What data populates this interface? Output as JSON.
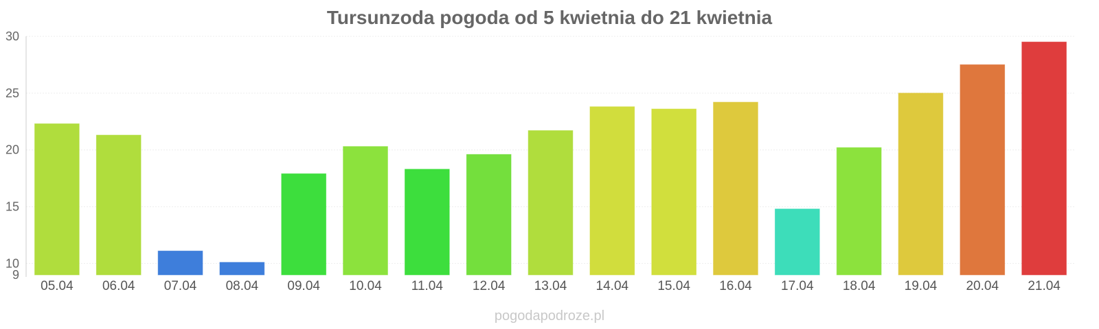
{
  "chart_data": {
    "type": "bar",
    "title": "Tursunzoda pogoda od 5 kwietnia do 21 kwietnia",
    "xlabel": "",
    "ylabel": "",
    "ylim": [
      9,
      30
    ],
    "yticks": [
      9,
      10,
      15,
      20,
      25,
      30
    ],
    "grid": true,
    "categories": [
      "05.04",
      "06.04",
      "07.04",
      "08.04",
      "09.04",
      "10.04",
      "11.04",
      "12.04",
      "13.04",
      "14.04",
      "15.04",
      "16.04",
      "17.04",
      "18.04",
      "19.04",
      "20.04",
      "21.04"
    ],
    "values": [
      22.3,
      21.3,
      11.1,
      10.1,
      17.9,
      20.3,
      18.3,
      19.6,
      21.7,
      23.8,
      23.6,
      24.2,
      14.8,
      20.2,
      25.0,
      27.5,
      29.5
    ],
    "colors": [
      "#acdb33",
      "#acdb33",
      "#3477d9",
      "#3477d9",
      "#33dc33",
      "#86e033",
      "#33dc33",
      "#6ddd33",
      "#acdb33",
      "#cfdb33",
      "#cfdd33",
      "#dcc633",
      "#33dbb6",
      "#86e033",
      "#dcc633",
      "#dd7033",
      "#dd3333"
    ]
  },
  "footer": "pogodapodroze.pl"
}
